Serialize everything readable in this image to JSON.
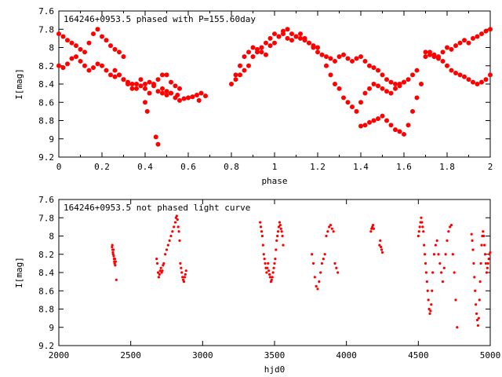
{
  "chart_data": [
    {
      "type": "scatter",
      "title": "164246+0953.5 phased with P=155.60day",
      "xlabel": "phase",
      "ylabel": "I[mag]",
      "xlim": [
        0,
        2
      ],
      "ylim": [
        9.2,
        7.6
      ],
      "y_inverted": true,
      "grid": false,
      "legend": "none",
      "marker_color": "#ff0000",
      "x_ticks": [
        "0",
        "0.2",
        "0.4",
        "0.6",
        "0.8",
        "1",
        "1.2",
        "1.4",
        "1.6",
        "1.8",
        "2"
      ],
      "y_ticks": [
        "7.6",
        "7.8",
        "8",
        "8.2",
        "8.4",
        "8.6",
        "8.8",
        "9",
        "9.2"
      ],
      "series": [
        {
          "x": [
            0.0,
            0.02,
            0.04,
            0.06,
            0.08,
            0.1,
            0.12,
            0.14,
            0.16,
            0.18,
            0.2,
            0.22,
            0.24,
            0.26,
            0.28,
            0.3,
            0.0,
            0.02,
            0.04,
            0.06,
            0.08,
            0.1,
            0.12,
            0.14,
            0.16,
            0.18,
            0.2,
            0.22,
            0.24,
            0.26,
            0.28,
            0.3,
            0.32,
            0.34,
            0.36,
            0.38,
            0.4,
            0.42,
            0.44,
            0.46,
            0.48,
            0.5,
            0.52,
            0.54,
            0.56,
            0.58,
            0.6,
            0.62,
            0.64,
            0.66,
            0.68,
            0.26,
            0.28,
            0.3,
            0.32,
            0.34,
            0.36,
            0.38,
            0.4,
            0.42,
            0.44,
            0.46,
            0.48,
            0.5,
            0.52,
            0.54,
            0.56,
            0.4,
            0.41,
            0.45,
            0.46,
            0.48,
            0.5,
            0.52,
            0.55,
            0.6,
            0.65
          ],
          "y": [
            7.85,
            7.88,
            7.92,
            7.95,
            7.98,
            8.02,
            8.05,
            7.95,
            7.85,
            7.8,
            7.88,
            7.92,
            7.98,
            8.02,
            8.05,
            8.1,
            8.2,
            8.22,
            8.18,
            8.12,
            8.1,
            8.15,
            8.2,
            8.25,
            8.22,
            8.18,
            8.2,
            8.25,
            8.3,
            8.32,
            8.3,
            8.35,
            8.38,
            8.4,
            8.45,
            8.42,
            8.4,
            8.38,
            8.42,
            8.48,
            8.5,
            8.52,
            8.5,
            8.55,
            8.58,
            8.56,
            8.55,
            8.54,
            8.52,
            8.5,
            8.53,
            8.25,
            8.3,
            8.35,
            8.4,
            8.45,
            8.4,
            8.35,
            8.45,
            8.5,
            8.4,
            8.35,
            8.3,
            8.3,
            8.38,
            8.42,
            8.45,
            8.6,
            8.7,
            8.98,
            9.06,
            8.45,
            8.48,
            8.5,
            8.52,
            8.55,
            8.58
          ]
        },
        {
          "x": [
            0.8,
            0.82,
            0.84,
            0.86,
            0.88,
            0.9,
            0.92,
            0.94,
            0.96,
            0.98,
            1.0,
            1.02,
            1.04,
            1.06,
            1.08,
            1.1,
            1.12,
            1.14,
            1.16,
            1.18,
            1.2,
            0.82,
            0.84,
            0.86,
            0.88,
            0.9,
            0.92,
            0.94,
            0.96,
            0.98,
            1.0,
            1.02,
            1.04,
            1.06,
            1.08,
            1.1,
            1.12,
            1.14,
            1.16,
            1.18,
            1.2,
            1.22,
            1.24,
            1.26,
            1.28,
            1.3,
            1.32,
            1.34,
            1.36,
            1.38,
            1.4,
            1.42,
            1.44,
            1.46,
            1.48,
            1.5,
            1.52,
            1.54,
            1.56,
            1.58,
            1.6,
            1.24,
            1.26,
            1.28,
            1.3,
            1.32,
            1.34,
            1.36,
            1.38,
            1.4,
            1.42,
            1.44,
            1.46,
            1.48,
            1.5,
            1.52,
            1.54,
            1.56,
            1.58,
            1.6,
            1.62,
            1.64,
            1.66,
            1.4,
            1.42,
            1.44,
            1.46,
            1.48,
            1.5,
            1.52,
            1.54,
            1.56,
            1.58,
            1.6,
            1.62,
            1.64,
            1.66,
            1.68,
            1.7,
            1.72,
            1.74,
            1.76,
            1.78,
            1.8,
            1.82,
            1.84,
            1.86,
            1.88,
            1.9,
            1.92,
            1.94,
            1.96,
            1.98,
            2.0,
            1.7,
            1.72,
            1.74,
            1.76,
            1.78,
            1.8,
            1.82,
            1.84,
            1.86,
            1.88,
            1.9,
            1.92,
            1.94,
            1.96,
            1.98,
            2.0
          ],
          "y": [
            8.4,
            8.35,
            8.3,
            8.25,
            8.2,
            8.1,
            8.05,
            8.0,
            7.95,
            7.9,
            7.85,
            7.88,
            7.82,
            7.8,
            7.85,
            7.88,
            7.9,
            7.92,
            7.95,
            7.98,
            8.0,
            8.3,
            8.2,
            8.1,
            8.05,
            8.0,
            8.02,
            8.05,
            8.08,
            7.98,
            7.95,
            7.88,
            7.85,
            7.9,
            7.92,
            7.88,
            7.85,
            7.9,
            7.95,
            8.0,
            8.05,
            8.08,
            8.1,
            8.12,
            8.15,
            8.1,
            8.08,
            8.12,
            8.15,
            8.12,
            8.1,
            8.15,
            8.2,
            8.22,
            8.25,
            8.3,
            8.35,
            8.38,
            8.4,
            8.42,
            8.38,
            8.2,
            8.3,
            8.4,
            8.45,
            8.55,
            8.6,
            8.65,
            8.7,
            8.6,
            8.5,
            8.45,
            8.4,
            8.42,
            8.45,
            8.48,
            8.5,
            8.45,
            8.4,
            8.38,
            8.35,
            8.3,
            8.25,
            8.86,
            8.85,
            8.82,
            8.8,
            8.78,
            8.75,
            8.8,
            8.85,
            8.9,
            8.92,
            8.95,
            8.85,
            8.7,
            8.55,
            8.4,
            8.05,
            8.08,
            8.1,
            8.12,
            8.15,
            8.2,
            8.25,
            8.28,
            8.3,
            8.32,
            8.35,
            8.38,
            8.4,
            8.38,
            8.35,
            8.3,
            8.1,
            8.05,
            8.08,
            8.1,
            8.05,
            8.0,
            8.02,
            7.98,
            7.95,
            7.92,
            7.95,
            7.9,
            7.88,
            7.85,
            7.82,
            7.8
          ]
        }
      ]
    },
    {
      "type": "scatter",
      "title": "164246+0953.5 not phased light curve",
      "xlabel": "hjd0",
      "ylabel": "I[mag]",
      "xlim": [
        2000,
        5000
      ],
      "ylim": [
        9.2,
        7.6
      ],
      "y_inverted": true,
      "grid": false,
      "legend": "none",
      "marker_color": "#ff0000",
      "x_ticks": [
        "2000",
        "2500",
        "3000",
        "3500",
        "4000",
        "4500",
        "5000"
      ],
      "y_ticks": [
        "7.6",
        "7.8",
        "8",
        "8.2",
        "8.4",
        "8.6",
        "8.8",
        "9",
        "9.2"
      ],
      "series": [
        {
          "x": [
            2370,
            2372,
            2374,
            2376,
            2378,
            2380,
            2382,
            2384,
            2386,
            2388,
            2390,
            2392,
            2395,
            2400,
            2680,
            2685,
            2690,
            2695,
            2700,
            2705,
            2710,
            2715,
            2720,
            2725,
            2730,
            2740,
            2750,
            2760,
            2770,
            2780,
            2790,
            2800,
            2810,
            2815,
            2820,
            2825,
            2830,
            2835,
            2840,
            2845,
            2850,
            2855,
            2860,
            2865,
            2870,
            2875,
            2880,
            2885
          ],
          "y": [
            8.12,
            8.1,
            8.15,
            8.18,
            8.2,
            8.15,
            8.22,
            8.25,
            8.28,
            8.3,
            8.25,
            8.32,
            8.28,
            8.48,
            8.25,
            8.3,
            8.4,
            8.45,
            8.42,
            8.38,
            8.35,
            8.4,
            8.38,
            8.32,
            8.3,
            8.2,
            8.15,
            8.1,
            8.05,
            8.0,
            7.95,
            7.9,
            7.85,
            7.8,
            7.78,
            7.82,
            7.9,
            7.95,
            8.05,
            8.3,
            8.35,
            8.4,
            8.45,
            8.48,
            8.5,
            8.45,
            8.42,
            8.38
          ]
        },
        {
          "x": [
            3400,
            3405,
            3410,
            3415,
            3420,
            3425,
            3430,
            3435,
            3440,
            3445,
            3450,
            3455,
            3460,
            3465,
            3470,
            3475,
            3480,
            3485,
            3490,
            3495,
            3500,
            3505,
            3510,
            3515,
            3520,
            3525,
            3530,
            3535,
            3540,
            3545,
            3550,
            3555,
            3560,
            3760,
            3770,
            3780,
            3790,
            3800,
            3810,
            3820,
            3830,
            3840,
            3850,
            3860,
            3870,
            3880,
            3890,
            3900,
            3910,
            3920,
            3930,
            3940
          ],
          "y": [
            7.85,
            7.9,
            7.95,
            8.0,
            8.1,
            8.2,
            8.25,
            8.3,
            8.35,
            8.4,
            8.35,
            8.3,
            8.38,
            8.42,
            8.45,
            8.5,
            8.48,
            8.45,
            8.4,
            8.35,
            8.3,
            8.25,
            8.15,
            8.05,
            8.0,
            7.95,
            7.9,
            7.85,
            7.88,
            7.92,
            7.95,
            8.0,
            8.1,
            8.2,
            8.3,
            8.45,
            8.55,
            8.58,
            8.5,
            8.4,
            8.3,
            8.25,
            8.2,
            8.0,
            7.95,
            7.9,
            7.88,
            7.92,
            7.95,
            8.3,
            8.35,
            8.4
          ]
        },
        {
          "x": [
            4170,
            4175,
            4180,
            4185,
            4190,
            4230,
            4235,
            4240,
            4245,
            4250,
            4500,
            4505,
            4510,
            4515,
            4520,
            4525,
            4530,
            4535,
            4540,
            4545,
            4550,
            4555,
            4560,
            4565,
            4570,
            4575,
            4580,
            4585,
            4590,
            4595,
            4600,
            4610,
            4620,
            4630,
            4640,
            4650,
            4660,
            4670,
            4680,
            4690,
            4700,
            4710,
            4720,
            4730,
            4740,
            4750,
            4760,
            4770
          ],
          "y": [
            7.95,
            7.92,
            7.9,
            7.88,
            7.92,
            8.1,
            8.05,
            8.12,
            8.15,
            8.18,
            8.0,
            7.95,
            7.9,
            7.85,
            7.8,
            7.85,
            7.9,
            7.95,
            8.1,
            8.2,
            8.3,
            8.4,
            8.5,
            8.6,
            8.7,
            8.8,
            8.85,
            8.82,
            8.75,
            8.6,
            8.4,
            8.2,
            8.1,
            8.05,
            8.2,
            8.3,
            8.4,
            8.5,
            8.35,
            8.2,
            8.05,
            7.95,
            7.9,
            7.88,
            8.2,
            8.4,
            8.7,
            9.0
          ]
        },
        {
          "x": [
            4870,
            4875,
            4880,
            4885,
            4890,
            4895,
            4900,
            4905,
            4910,
            4915,
            4920,
            4925,
            4930,
            4935,
            4940,
            4945,
            4950,
            4955,
            4960,
            4965,
            4970,
            4975,
            4980,
            4985,
            4990,
            4995,
            5000
          ],
          "y": [
            7.98,
            8.05,
            8.15,
            8.3,
            8.45,
            8.6,
            8.75,
            8.85,
            8.92,
            8.98,
            8.9,
            8.7,
            8.5,
            8.3,
            8.1,
            8.0,
            7.95,
            8.0,
            8.1,
            8.2,
            8.3,
            8.4,
            8.35,
            8.3,
            8.25,
            8.2,
            8.18
          ]
        }
      ]
    }
  ]
}
